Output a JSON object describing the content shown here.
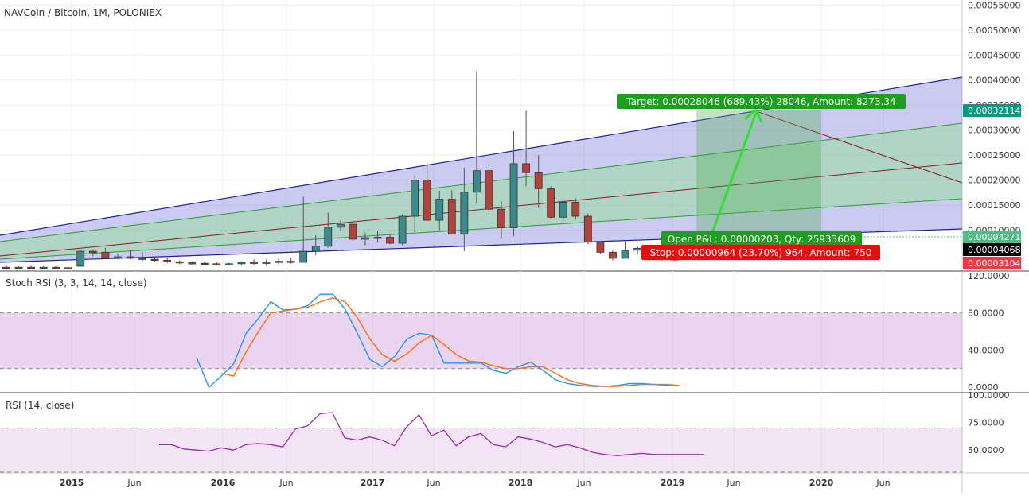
{
  "header": {
    "main_title": "NAVCoin / Bitcoin, 1M, POLONIEX",
    "stoch_title": "Stoch RSI (3, 3, 14, 14, close)",
    "rsi_title": "RSI (14, close)"
  },
  "colors": {
    "up": "#53b987",
    "down": "#eb4d5c",
    "up_body": "#3c8a8c",
    "down_body": "#b0433d",
    "channel_blue": "#1f1fa3",
    "channel_green": "#2e9b2e",
    "channel_mid": "#8b1a1a",
    "stoch_k": "#2196f3",
    "stoch_d": "#ff6d00",
    "rsi_line": "#9c27b0",
    "target_green": "#089981",
    "stop_red": "#f23645"
  },
  "chart_data": [
    {
      "type": "candlestick",
      "title": "NAVCoin / Bitcoin, 1M, POLONIEX",
      "y_axis": {
        "ticks": [
          "0.00055000",
          "0.00050000",
          "0.00045000",
          "0.00040000",
          "0.00035000",
          "0.00030000",
          "0.00025000",
          "0.00020000",
          "0.00015000",
          "0.00010000"
        ],
        "range": [
          2e-05,
          0.00056
        ]
      },
      "x_axis": {
        "ticks": [
          "2015",
          "Jun",
          "2016",
          "Jun",
          "2017",
          "Jun",
          "2018",
          "Jun",
          "2019",
          "Jun",
          "2020",
          "Jun"
        ]
      },
      "candles": [
        {
          "o": 2.6e-05,
          "h": 3e-05,
          "l": 2.2e-05,
          "c": 2.4e-05
        },
        {
          "o": 2.4e-05,
          "h": 2.8e-05,
          "l": 2.2e-05,
          "c": 2.6e-05
        },
        {
          "o": 2.6e-05,
          "h": 2.9e-05,
          "l": 2.3e-05,
          "c": 2.5e-05
        },
        {
          "o": 2.5e-05,
          "h": 2.8e-05,
          "l": 2.3e-05,
          "c": 2.6e-05
        },
        {
          "o": 2.6e-05,
          "h": 2.8e-05,
          "l": 2.3e-05,
          "c": 2.5e-05
        },
        {
          "o": 2.5e-05,
          "h": 2.7e-05,
          "l": 2.3e-05,
          "c": 2.4e-05
        },
        {
          "o": 2.8e-05,
          "h": 6e-05,
          "l": 2.7e-05,
          "c": 5.8e-05
        },
        {
          "o": 5.8e-05,
          "h": 6.2e-05,
          "l": 4.8e-05,
          "c": 5.6e-05
        },
        {
          "o": 5.6e-05,
          "h": 6.5e-05,
          "l": 4.3e-05,
          "c": 4.5e-05
        },
        {
          "o": 4.5e-05,
          "h": 5.4e-05,
          "l": 4.2e-05,
          "c": 4.7e-05
        },
        {
          "o": 4.7e-05,
          "h": 6e-05,
          "l": 4.2e-05,
          "c": 4.4e-05
        },
        {
          "o": 4.4e-05,
          "h": 5.6e-05,
          "l": 3.8e-05,
          "c": 4.2e-05
        },
        {
          "o": 4.2e-05,
          "h": 4.7e-05,
          "l": 3.7e-05,
          "c": 4e-05
        },
        {
          "o": 4e-05,
          "h": 4.4e-05,
          "l": 3.4e-05,
          "c": 3.7e-05
        },
        {
          "o": 3.7e-05,
          "h": 4e-05,
          "l": 3.2e-05,
          "c": 3.5e-05
        },
        {
          "o": 3.5e-05,
          "h": 3.8e-05,
          "l": 3.1e-05,
          "c": 3.4e-05
        },
        {
          "o": 3.4e-05,
          "h": 3.7e-05,
          "l": 3e-05,
          "c": 3.3e-05
        },
        {
          "o": 3.3e-05,
          "h": 3.6e-05,
          "l": 2.9e-05,
          "c": 3.2e-05
        },
        {
          "o": 3.2e-05,
          "h": 3.5e-05,
          "l": 2.9e-05,
          "c": 3.3e-05
        },
        {
          "o": 3.3e-05,
          "h": 3.8e-05,
          "l": 3e-05,
          "c": 3.6e-05
        },
        {
          "o": 3.6e-05,
          "h": 4.2e-05,
          "l": 3.1e-05,
          "c": 3.5e-05
        },
        {
          "o": 3.5e-05,
          "h": 4.1e-05,
          "l": 3e-05,
          "c": 3.6e-05
        },
        {
          "o": 3.6e-05,
          "h": 4.5e-05,
          "l": 3.2e-05,
          "c": 3.8e-05
        },
        {
          "o": 3.8e-05,
          "h": 4.5e-05,
          "l": 3.3e-05,
          "c": 3.6e-05
        },
        {
          "o": 3.6e-05,
          "h": 0.000167,
          "l": 3.5e-05,
          "c": 5.8e-05
        },
        {
          "o": 5.8e-05,
          "h": 9e-05,
          "l": 5e-05,
          "c": 6.8e-05
        },
        {
          "o": 6.8e-05,
          "h": 0.000135,
          "l": 6.5e-05,
          "c": 0.000106
        },
        {
          "o": 0.000106,
          "h": 0.00012,
          "l": 9.8e-05,
          "c": 0.000112
        },
        {
          "o": 0.000112,
          "h": 0.000117,
          "l": 7.8e-05,
          "c": 8.2e-05
        },
        {
          "o": 8.2e-05,
          "h": 9.5e-05,
          "l": 7e-05,
          "c": 8.5e-05
        },
        {
          "o": 8.5e-05,
          "h": 9.8e-05,
          "l": 7.6e-05,
          "c": 8.6e-05
        },
        {
          "o": 8.6e-05,
          "h": 9.2e-05,
          "l": 7.2e-05,
          "c": 7.4e-05
        },
        {
          "o": 7.4e-05,
          "h": 0.000132,
          "l": 7e-05,
          "c": 0.000128
        },
        {
          "o": 0.000128,
          "h": 0.00021,
          "l": 9.6e-05,
          "c": 0.0002
        },
        {
          "o": 0.0002,
          "h": 0.000235,
          "l": 0.000118,
          "c": 0.00012
        },
        {
          "o": 0.00012,
          "h": 0.000179,
          "l": 0.0001,
          "c": 0.000162
        },
        {
          "o": 0.000162,
          "h": 0.00018,
          "l": 9.2e-05,
          "c": 9.2e-05
        },
        {
          "o": 9.2e-05,
          "h": 0.000225,
          "l": 5.8e-05,
          "c": 0.000176
        },
        {
          "o": 0.000176,
          "h": 0.000418,
          "l": 0.000152,
          "c": 0.000219
        },
        {
          "o": 0.000219,
          "h": 0.00023,
          "l": 0.000129,
          "c": 0.000142
        },
        {
          "o": 0.000142,
          "h": 0.000158,
          "l": 8.3e-05,
          "c": 0.000105
        },
        {
          "o": 0.000105,
          "h": 0.000298,
          "l": 8.8e-05,
          "c": 0.000233
        },
        {
          "o": 0.000233,
          "h": 0.000339,
          "l": 0.000188,
          "c": 0.000215
        },
        {
          "o": 0.000215,
          "h": 0.00025,
          "l": 0.000145,
          "c": 0.000183
        },
        {
          "o": 0.000183,
          "h": 0.000188,
          "l": 0.000124,
          "c": 0.000126
        },
        {
          "o": 0.000126,
          "h": 0.000158,
          "l": 0.000118,
          "c": 0.000156
        },
        {
          "o": 0.000156,
          "h": 0.000164,
          "l": 0.000121,
          "c": 0.000128
        },
        {
          "o": 0.000128,
          "h": 0.000133,
          "l": 7.2e-05,
          "c": 7.6e-05
        },
        {
          "o": 7.6e-05,
          "h": 7.8e-05,
          "l": 5.2e-05,
          "c": 5.6e-05
        },
        {
          "o": 5.6e-05,
          "h": 6.1e-05,
          "l": 4e-05,
          "c": 4.4e-05
        },
        {
          "o": 4.4e-05,
          "h": 7.8e-05,
          "l": 4.4e-05,
          "c": 6e-05
        },
        {
          "o": 6e-05,
          "h": 6.9e-05,
          "l": 5.1e-05,
          "c": 6.4e-05
        },
        {
          "o": 6.4e-05,
          "h": 6.9e-05,
          "l": 4e-05,
          "c": 4.6e-05
        },
        {
          "o": 4.6e-05,
          "h": 5.2e-05,
          "l": 4e-05,
          "c": 4.3e-05
        },
        {
          "o": 4.3e-05,
          "h": 4.5e-05,
          "l": 3.9e-05,
          "c": 4.2e-05
        }
      ],
      "price_tags": [
        {
          "value": "0.00032114",
          "color": "#089981"
        },
        {
          "value": "0.00004271",
          "color": "#53b987"
        },
        {
          "value": "0.00004068",
          "color": "#000000"
        },
        {
          "value": "0.00003104",
          "color": "#f23645"
        }
      ],
      "annotations": {
        "target": "Target: 0.00028046 (689.43%) 28046, Amount: 8273.34",
        "open_pl": "Open P&L: 0.00000203, Qty: 25933609",
        "stop": "Stop: 0.00000964 (23.70%) 964, Amount: 750"
      }
    },
    {
      "type": "line",
      "title": "Stoch RSI (3, 3, 14, 14, close)",
      "y_axis": {
        "ticks": [
          "120.0000",
          "80.0000",
          "40.0000",
          "0.0000"
        ],
        "range": [
          -5,
          125
        ]
      },
      "bands": [
        20,
        80
      ],
      "series": [
        {
          "color": "#2196f3",
          "values": [
            32,
            0,
            12,
            25,
            58,
            74,
            92,
            83,
            84,
            88,
            100,
            100,
            84,
            58,
            30,
            22,
            33,
            52,
            58,
            56,
            26,
            26,
            26,
            26,
            18,
            15,
            22,
            27,
            18,
            8,
            4,
            2,
            1,
            1,
            2,
            4,
            4,
            3,
            2,
            2
          ]
        },
        {
          "color": "#ff6d00",
          "values": [
            null,
            null,
            15,
            12,
            38,
            60,
            80,
            82,
            84,
            86,
            92,
            96,
            92,
            75,
            52,
            35,
            28,
            36,
            48,
            56,
            46,
            35,
            28,
            27,
            23,
            20,
            20,
            22,
            22,
            15,
            8,
            4,
            2,
            1,
            1,
            2,
            3,
            3,
            3,
            2
          ]
        }
      ]
    },
    {
      "type": "line",
      "title": "RSI (14, close)",
      "y_axis": {
        "ticks": [
          "100.0000",
          "75.0000",
          "50.0000"
        ],
        "range": [
          30,
          102
        ]
      },
      "bands": [
        30,
        70
      ],
      "series": [
        {
          "color": "#9c27b0",
          "values": [
            55,
            55,
            51,
            50,
            49,
            52,
            50,
            55,
            56,
            55,
            53,
            69,
            72,
            83,
            84,
            61,
            59,
            62,
            59,
            54,
            71,
            82,
            63,
            68,
            54,
            62,
            65,
            55,
            53,
            62,
            60,
            57,
            53,
            55,
            52,
            48,
            46,
            45,
            46,
            47,
            46,
            46,
            46,
            46,
            46
          ]
        }
      ]
    }
  ]
}
